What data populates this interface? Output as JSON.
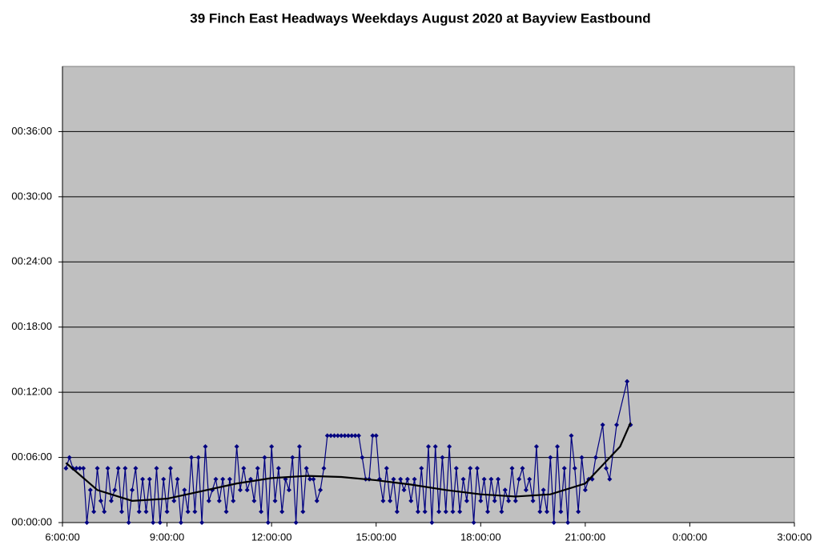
{
  "chart_data": {
    "type": "line",
    "title": "39 Finch East Headways Weekdays August 2020 at Bayview Eastbound",
    "xlim": [
      6,
      27
    ],
    "xticks": [
      {
        "value": 6,
        "label": "6:00:00"
      },
      {
        "value": 9,
        "label": "9:00:00"
      },
      {
        "value": 12,
        "label": "12:00:00"
      },
      {
        "value": 15,
        "label": "15:00:00"
      },
      {
        "value": 18,
        "label": "18:00:00"
      },
      {
        "value": 21,
        "label": "21:00:00"
      },
      {
        "value": 24,
        "label": "0:00:00"
      },
      {
        "value": 27,
        "label": "3:00:00"
      }
    ],
    "ylim": [
      0,
      42
    ],
    "yticks": [
      {
        "value": 0,
        "label": "00:00:00"
      },
      {
        "value": 6,
        "label": "00:06:00"
      },
      {
        "value": 12,
        "label": "00:12:00"
      },
      {
        "value": 18,
        "label": "00:18:00"
      },
      {
        "value": 24,
        "label": "00:24:00"
      },
      {
        "value": 30,
        "label": "00:30:00"
      },
      {
        "value": 36,
        "label": "00:36:00"
      }
    ],
    "grid": true,
    "plot_background": "#c0c0c0",
    "series": [
      {
        "color": "#000080",
        "markers": true,
        "x": [
          6.1,
          6.2,
          6.3,
          6.4,
          6.5,
          6.6,
          6.7,
          6.8,
          6.9,
          7.0,
          7.1,
          7.2,
          7.3,
          7.4,
          7.5,
          7.6,
          7.7,
          7.8,
          7.9,
          8.0,
          8.1,
          8.2,
          8.3,
          8.4,
          8.5,
          8.6,
          8.7,
          8.8,
          8.9,
          9.0,
          9.1,
          9.2,
          9.3,
          9.4,
          9.5,
          9.6,
          9.7,
          9.8,
          9.9,
          10.0,
          10.1,
          10.2,
          10.3,
          10.4,
          10.5,
          10.6,
          10.7,
          10.8,
          10.9,
          11.0,
          11.1,
          11.2,
          11.3,
          11.4,
          11.5,
          11.6,
          11.7,
          11.8,
          11.9,
          12.0,
          12.1,
          12.2,
          12.3,
          12.4,
          12.5,
          12.6,
          12.7,
          12.8,
          12.9,
          13.0,
          13.1,
          13.2,
          13.3,
          13.4,
          13.5,
          13.6,
          13.7,
          13.8,
          13.9,
          14.0,
          14.1,
          14.2,
          14.3,
          14.4,
          14.5,
          14.6,
          14.7,
          14.8,
          14.9,
          15.0,
          15.1,
          15.2,
          15.3,
          15.4,
          15.5,
          15.6,
          15.7,
          15.8,
          15.9,
          16.0,
          16.1,
          16.2,
          16.3,
          16.4,
          16.5,
          16.6,
          16.7,
          16.8,
          16.9,
          17.0,
          17.1,
          17.2,
          17.3,
          17.4,
          17.5,
          17.6,
          17.7,
          17.8,
          17.9,
          18.0,
          18.1,
          18.2,
          18.3,
          18.4,
          18.5,
          18.6,
          18.7,
          18.8,
          18.9,
          19.0,
          19.1,
          19.2,
          19.3,
          19.4,
          19.5,
          19.6,
          19.7,
          19.8,
          19.9,
          20.0,
          20.1,
          20.2,
          20.3,
          20.4,
          20.5,
          20.6,
          20.7,
          20.8,
          20.9,
          21.0,
          21.1,
          21.2,
          21.3,
          21.5,
          21.6,
          21.7,
          21.9,
          22.2,
          22.3
        ],
        "values": [
          5,
          6,
          5,
          5,
          5,
          5,
          0,
          3,
          1,
          5,
          2,
          1,
          5,
          2,
          3,
          5,
          1,
          5,
          0,
          3,
          5,
          1,
          4,
          1,
          4,
          0,
          5,
          0,
          4,
          1,
          5,
          2,
          4,
          0,
          3,
          1,
          6,
          1,
          6,
          0,
          7,
          2,
          3,
          4,
          2,
          4,
          1,
          4,
          2,
          7,
          3,
          5,
          3,
          4,
          2,
          5,
          1,
          6,
          0,
          7,
          2,
          5,
          1,
          4,
          3,
          6,
          0,
          7,
          1,
          5,
          4,
          4,
          2,
          3,
          5,
          8,
          8,
          8,
          8,
          8,
          8,
          8,
          8,
          8,
          8,
          6,
          4,
          4,
          8,
          8,
          4,
          2,
          5,
          2,
          4,
          1,
          4,
          3,
          4,
          2,
          4,
          1,
          5,
          1,
          7,
          0,
          7,
          1,
          6,
          1,
          7,
          1,
          5,
          1,
          4,
          2,
          5,
          0,
          5,
          2,
          4,
          1,
          4,
          2,
          4,
          1,
          3,
          2,
          5,
          2,
          4,
          5,
          3,
          4,
          2,
          7,
          1,
          3,
          1,
          6,
          0,
          7,
          1,
          5,
          0,
          8,
          5,
          1,
          6,
          3,
          4,
          4,
          6,
          9,
          5,
          4,
          9,
          13,
          9
        ]
      },
      {
        "color": "#000000",
        "markers": false,
        "x": [
          6.1,
          7,
          8,
          9,
          10,
          11,
          12,
          13,
          14,
          15,
          16,
          17,
          18,
          19,
          20,
          21,
          22,
          22.3
        ],
        "values": [
          5.5,
          3,
          2,
          2.2,
          2.9,
          3.6,
          4.1,
          4.3,
          4.2,
          3.9,
          3.5,
          3,
          2.6,
          2.4,
          2.6,
          3.6,
          7,
          9.2
        ]
      }
    ]
  }
}
